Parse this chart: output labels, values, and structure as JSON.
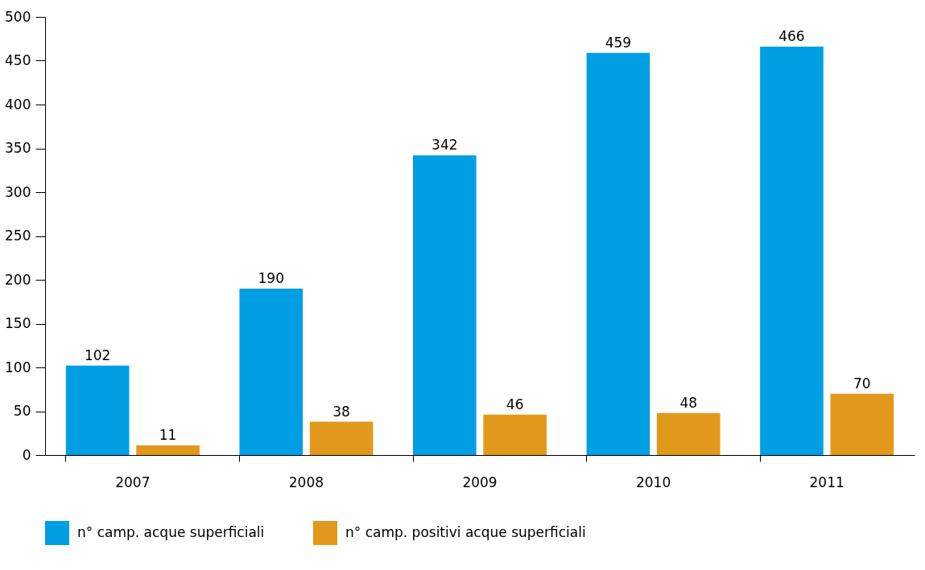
{
  "chart_data": {
    "type": "bar",
    "categories": [
      "2007",
      "2008",
      "2009",
      "2010",
      "2011"
    ],
    "series": [
      {
        "name": "n° camp. acque superficiali",
        "color": "#009fe3",
        "values": [
          102,
          190,
          342,
          459,
          466
        ]
      },
      {
        "name": "n° camp. positivi acque superficiali",
        "color": "#e2991b",
        "values": [
          11,
          38,
          46,
          48,
          70
        ]
      }
    ],
    "ylim": [
      0,
      500
    ],
    "yticks": [
      0,
      50,
      100,
      150,
      200,
      250,
      300,
      350,
      400,
      450,
      500
    ],
    "grid": false,
    "legend": "bottom",
    "data_labels": true
  }
}
